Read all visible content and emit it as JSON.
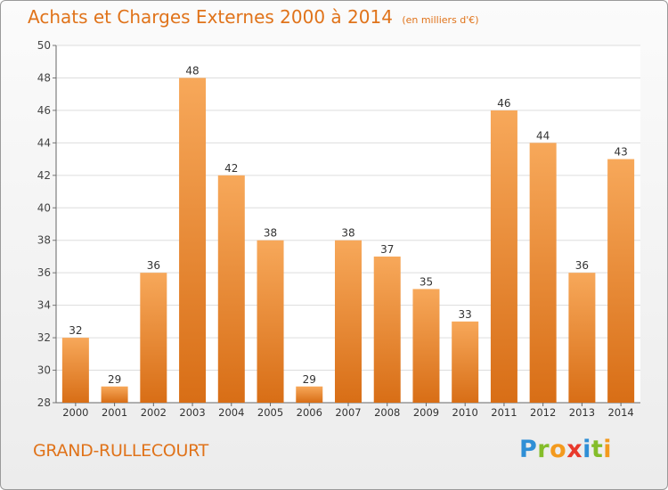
{
  "header": {
    "title": "Achats et Charges Externes 2000 à 2014",
    "unit": "(en milliers d'€)"
  },
  "footer": {
    "city": "GRAND-RULLECOURT",
    "brand": "Proxiti"
  },
  "colors": {
    "accent": "#e0731a",
    "bar_light": "#f7a85a",
    "bar_dark": "#d86e16"
  },
  "chart_data": {
    "type": "bar",
    "title": "Achats et Charges Externes 2000 à 2014",
    "subtitle": "(en milliers d'€)",
    "categories": [
      "2000",
      "2001",
      "2002",
      "2003",
      "2004",
      "2005",
      "2006",
      "2007",
      "2008",
      "2009",
      "2010",
      "2011",
      "2012",
      "2013",
      "2014"
    ],
    "values": [
      32,
      29,
      36,
      48,
      42,
      38,
      29,
      38,
      37,
      35,
      33,
      46,
      44,
      36,
      43
    ],
    "ylim": [
      28,
      50
    ],
    "yticks": [
      28,
      30,
      32,
      34,
      36,
      38,
      40,
      42,
      44,
      46,
      48,
      50
    ],
    "grid": true,
    "data_labels": true
  }
}
